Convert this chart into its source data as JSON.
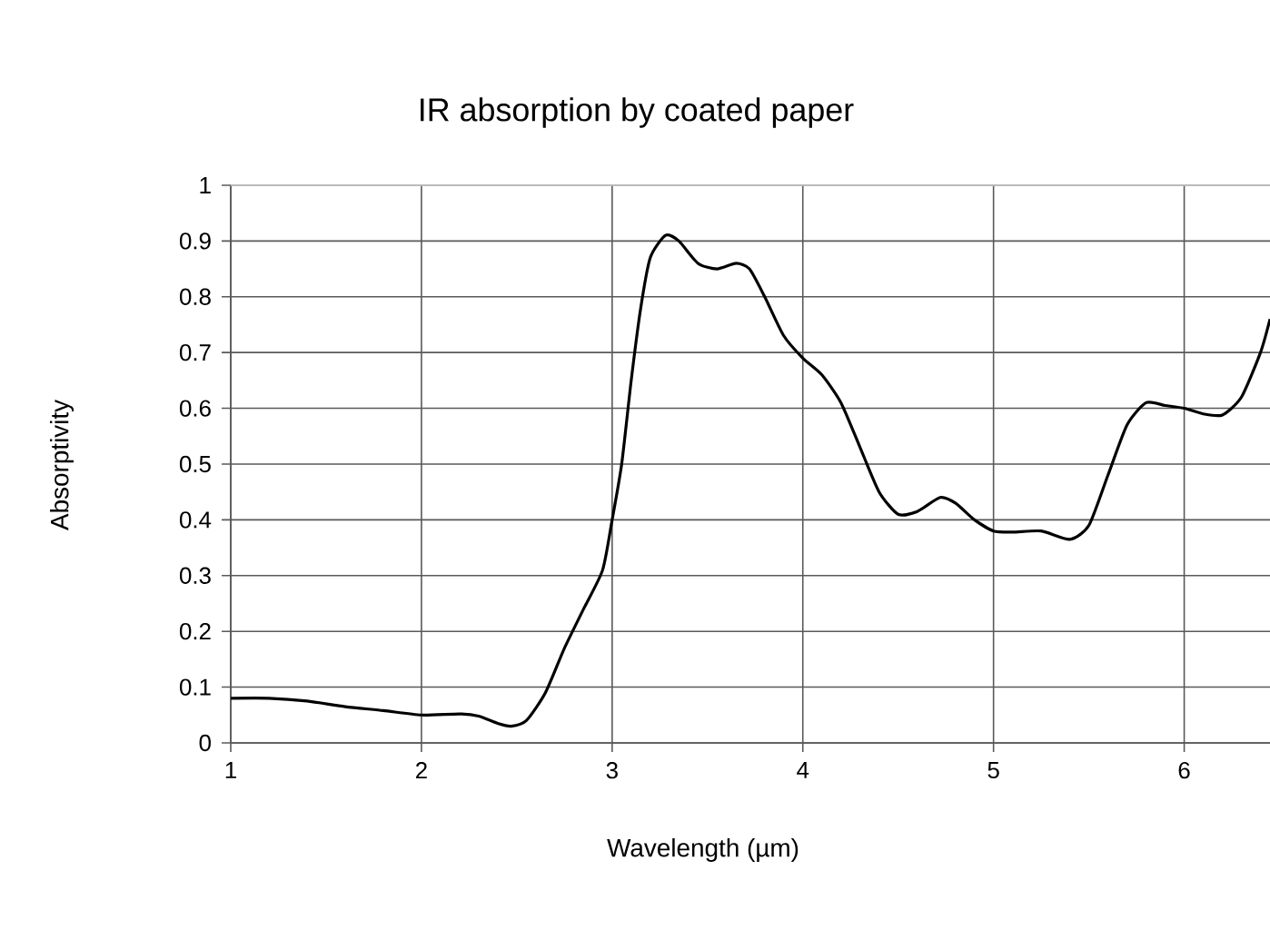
{
  "chart_data": {
    "type": "line",
    "title": "IR absorption by coated paper",
    "xlabel": "Wavelength (µm)",
    "ylabel": "Absorptivity",
    "x": [
      1.0,
      1.2,
      1.4,
      1.6,
      1.8,
      2.0,
      2.2,
      2.3,
      2.4,
      2.47,
      2.55,
      2.65,
      2.75,
      2.85,
      2.95,
      3.0,
      3.05,
      3.1,
      3.15,
      3.2,
      3.28,
      3.35,
      3.45,
      3.55,
      3.65,
      3.72,
      3.8,
      3.9,
      4.0,
      4.1,
      4.2,
      4.3,
      4.4,
      4.5,
      4.6,
      4.72,
      4.8,
      4.9,
      5.0,
      5.1,
      5.25,
      5.4,
      5.5,
      5.6,
      5.7,
      5.8,
      5.9,
      6.0,
      6.1,
      6.2,
      6.3,
      6.4,
      6.45
    ],
    "series": [
      {
        "color": "#000000",
        "values": [
          0.08,
          0.08,
          0.075,
          0.065,
          0.058,
          0.05,
          0.052,
          0.048,
          0.035,
          0.03,
          0.04,
          0.09,
          0.17,
          0.24,
          0.31,
          0.4,
          0.5,
          0.65,
          0.78,
          0.87,
          0.91,
          0.9,
          0.86,
          0.85,
          0.86,
          0.85,
          0.8,
          0.73,
          0.69,
          0.66,
          0.61,
          0.53,
          0.45,
          0.41,
          0.415,
          0.44,
          0.43,
          0.4,
          0.38,
          0.378,
          0.38,
          0.365,
          0.39,
          0.48,
          0.57,
          0.61,
          0.605,
          0.6,
          0.59,
          0.588,
          0.62,
          0.7,
          0.76
        ]
      }
    ],
    "xlim": [
      1,
      6.45
    ],
    "ylim": [
      0,
      1
    ],
    "xticks": [
      1,
      2,
      3,
      4,
      5,
      6
    ],
    "yticks": [
      0,
      0.1,
      0.2,
      0.3,
      0.4,
      0.5,
      0.6,
      0.7,
      0.8,
      0.9,
      1
    ],
    "grid": true,
    "marker": "none",
    "line_style": "solid"
  }
}
